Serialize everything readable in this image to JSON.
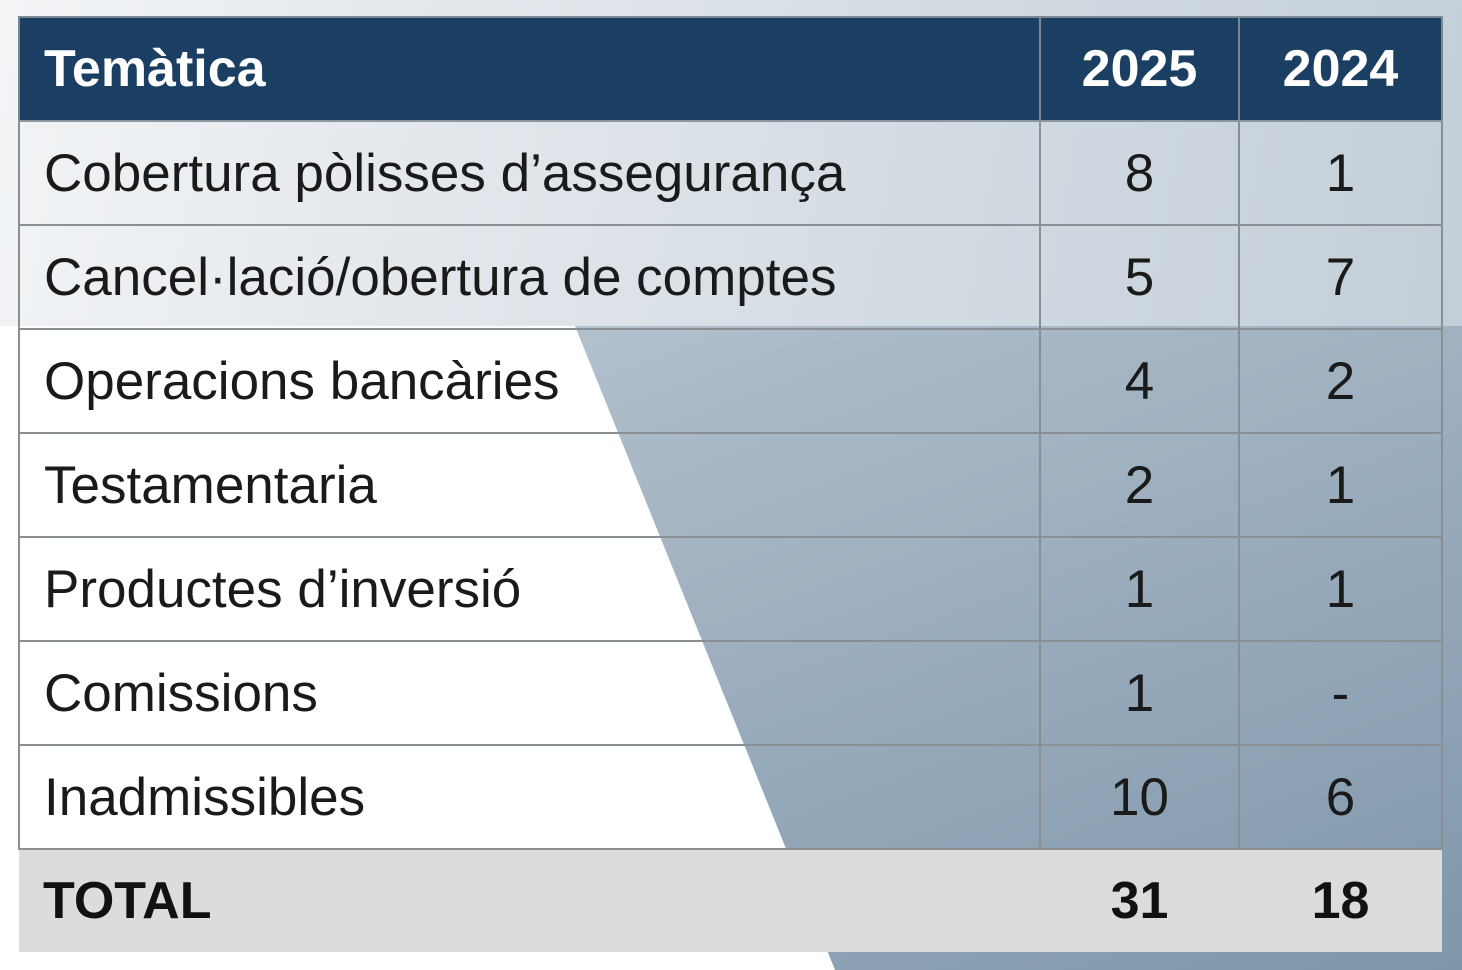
{
  "table": {
    "headers": [
      "Temàtica",
      "2025",
      "2024"
    ],
    "rows": [
      {
        "topic": "Cobertura pòlisses d’assegurança",
        "y2025": "8",
        "y2024": "1"
      },
      {
        "topic": "Cancel·lació/obertura de comptes",
        "y2025": "5",
        "y2024": "7"
      },
      {
        "topic": "Operacions bancàries",
        "y2025": "4",
        "y2024": "2"
      },
      {
        "topic": "Testamentaria",
        "y2025": "2",
        "y2024": "1"
      },
      {
        "topic": "Productes d’inversió",
        "y2025": "1",
        "y2024": "1"
      },
      {
        "topic": "Comissions",
        "y2025": "1",
        "y2024": "-"
      },
      {
        "topic": "Inadmissibles",
        "y2025": "10",
        "y2024": "6"
      }
    ],
    "total": {
      "label": "TOTAL",
      "y2025": "31",
      "y2024": "18"
    }
  },
  "colors": {
    "header_bg": "#1b3f63",
    "header_text": "#ffffff",
    "total_bg": "#dcdcdc",
    "accent_gradient": [
      "#d6dde4",
      "#7f97ab"
    ]
  }
}
